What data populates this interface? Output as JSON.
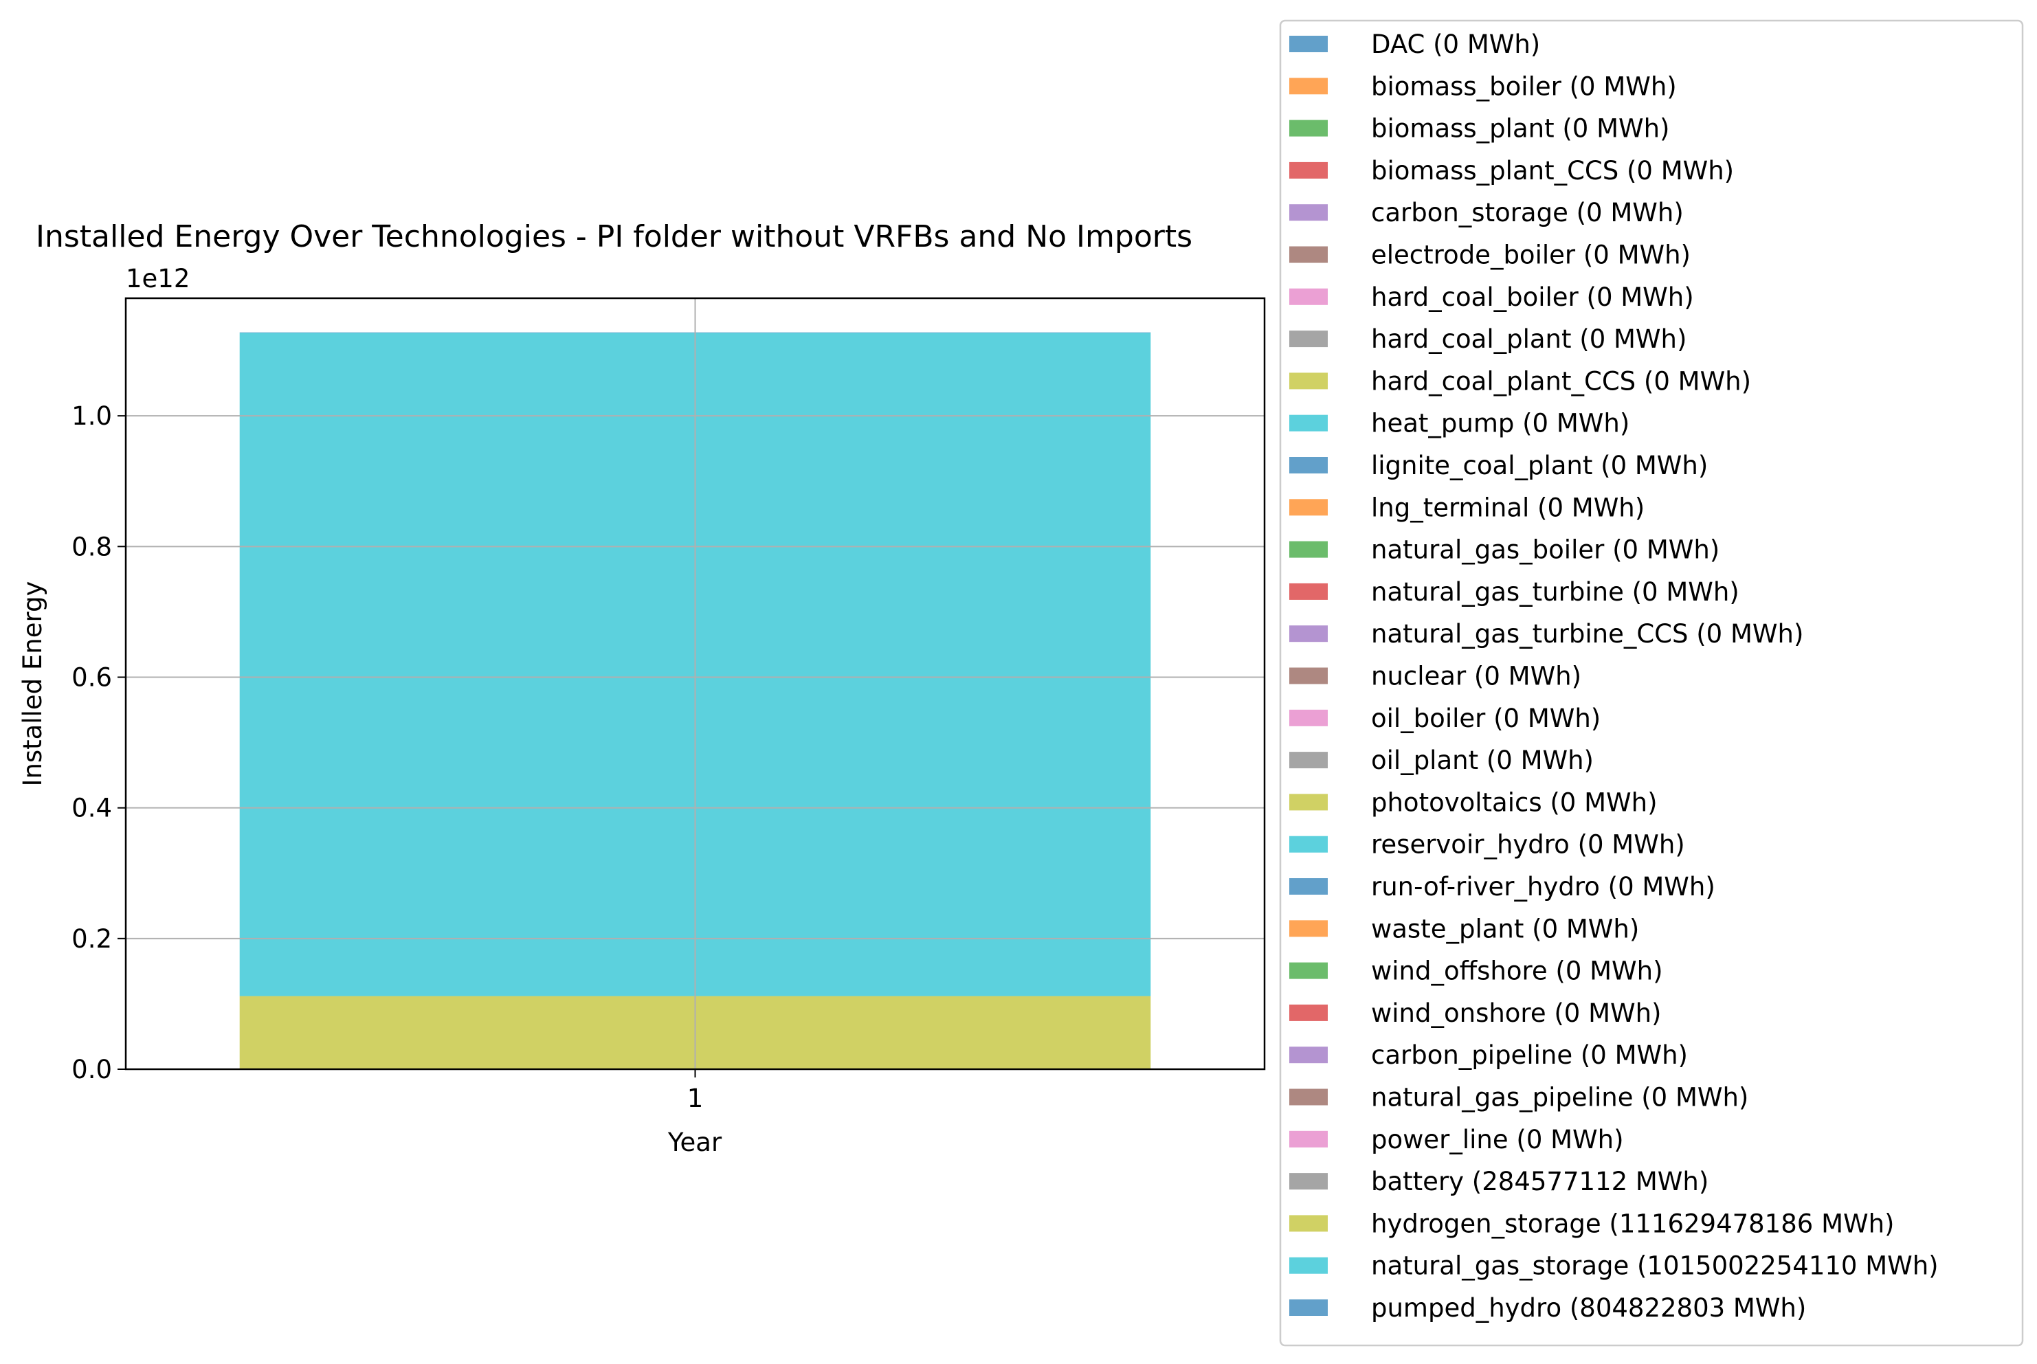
{
  "chart_data": {
    "type": "bar",
    "stacked": true,
    "title": "Installed Energy Over Technologies - PI folder without VRFBs and No Imports",
    "xlabel": "Year",
    "ylabel": "Installed Energy",
    "y_offset_label": "1e12",
    "y_scale": 1000000000000.0,
    "categories": [
      "1"
    ],
    "ylim": [
      0,
      1180000000000.0
    ],
    "yticks": [
      "0.0",
      "0.2",
      "0.4",
      "0.6",
      "0.8",
      "1.0"
    ],
    "grid": true,
    "bar_alpha": 0.7,
    "legend_position": "right, outside plot",
    "series": [
      {
        "name": "DAC (0 MWh)",
        "color": "#1f77b4",
        "values": [
          0
        ]
      },
      {
        "name": "biomass_boiler (0 MWh)",
        "color": "#ff7f0e",
        "values": [
          0
        ]
      },
      {
        "name": "biomass_plant (0 MWh)",
        "color": "#2ca02c",
        "values": [
          0
        ]
      },
      {
        "name": "biomass_plant_CCS (0 MWh)",
        "color": "#d62728",
        "values": [
          0
        ]
      },
      {
        "name": "carbon_storage (0 MWh)",
        "color": "#9467bd",
        "values": [
          0
        ]
      },
      {
        "name": "electrode_boiler (0 MWh)",
        "color": "#8c564b",
        "values": [
          0
        ]
      },
      {
        "name": "hard_coal_boiler (0 MWh)",
        "color": "#e377c2",
        "values": [
          0
        ]
      },
      {
        "name": "hard_coal_plant (0 MWh)",
        "color": "#7f7f7f",
        "values": [
          0
        ]
      },
      {
        "name": "hard_coal_plant_CCS (0 MWh)",
        "color": "#bcbd22",
        "values": [
          0
        ]
      },
      {
        "name": "heat_pump (0 MWh)",
        "color": "#17becf",
        "values": [
          0
        ]
      },
      {
        "name": "lignite_coal_plant (0 MWh)",
        "color": "#1f77b4",
        "values": [
          0
        ]
      },
      {
        "name": "lng_terminal (0 MWh)",
        "color": "#ff7f0e",
        "values": [
          0
        ]
      },
      {
        "name": "natural_gas_boiler (0 MWh)",
        "color": "#2ca02c",
        "values": [
          0
        ]
      },
      {
        "name": "natural_gas_turbine (0 MWh)",
        "color": "#d62728",
        "values": [
          0
        ]
      },
      {
        "name": "natural_gas_turbine_CCS (0 MWh)",
        "color": "#9467bd",
        "values": [
          0
        ]
      },
      {
        "name": "nuclear (0 MWh)",
        "color": "#8c564b",
        "values": [
          0
        ]
      },
      {
        "name": "oil_boiler (0 MWh)",
        "color": "#e377c2",
        "values": [
          0
        ]
      },
      {
        "name": "oil_plant (0 MWh)",
        "color": "#7f7f7f",
        "values": [
          0
        ]
      },
      {
        "name": "photovoltaics (0 MWh)",
        "color": "#bcbd22",
        "values": [
          0
        ]
      },
      {
        "name": "reservoir_hydro (0 MWh)",
        "color": "#17becf",
        "values": [
          0
        ]
      },
      {
        "name": "run-of-river_hydro (0 MWh)",
        "color": "#1f77b4",
        "values": [
          0
        ]
      },
      {
        "name": "waste_plant (0 MWh)",
        "color": "#ff7f0e",
        "values": [
          0
        ]
      },
      {
        "name": "wind_offshore (0 MWh)",
        "color": "#2ca02c",
        "values": [
          0
        ]
      },
      {
        "name": "wind_onshore (0 MWh)",
        "color": "#d62728",
        "values": [
          0
        ]
      },
      {
        "name": "carbon_pipeline (0 MWh)",
        "color": "#9467bd",
        "values": [
          0
        ]
      },
      {
        "name": "natural_gas_pipeline (0 MWh)",
        "color": "#8c564b",
        "values": [
          0
        ]
      },
      {
        "name": "power_line (0 MWh)",
        "color": "#e377c2",
        "values": [
          0
        ]
      },
      {
        "name": "battery (284577112 MWh)",
        "color": "#7f7f7f",
        "values": [
          284577112
        ]
      },
      {
        "name": "hydrogen_storage (111629478186 MWh)",
        "color": "#bcbd22",
        "values": [
          111629478186
        ]
      },
      {
        "name": "natural_gas_storage (1015002254110 MWh)",
        "color": "#17becf",
        "values": [
          1015002254110
        ]
      },
      {
        "name": "pumped_hydro (804822803 MWh)",
        "color": "#1f77b4",
        "values": [
          804822803
        ]
      }
    ]
  }
}
